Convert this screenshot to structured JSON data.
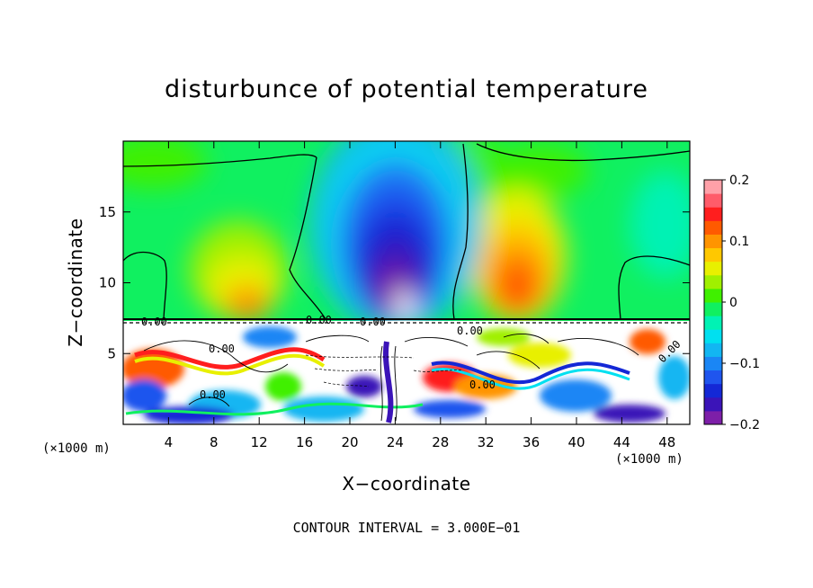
{
  "chart_data": {
    "type": "heatmap",
    "title": "disturbunce of potential temperature",
    "xlabel": "X−coordinate",
    "ylabel": "Z−coordinate",
    "x_unit": "(×1000 m)",
    "x_unit_right": "(×1000 m)",
    "xlim": [
      0,
      50
    ],
    "ylim": [
      0,
      20
    ],
    "xticks": [
      4,
      8,
      12,
      16,
      20,
      24,
      28,
      32,
      36,
      40,
      44,
      48
    ],
    "yticks": [
      5,
      10,
      15
    ],
    "colorbar": {
      "range": [
        -0.2,
        0.2
      ],
      "ticks": [
        0.2,
        0.1,
        0,
        -0.1,
        -0.2
      ],
      "tick_labels": [
        "0.2",
        "0.1",
        "0",
        "−0.1",
        "−0.2"
      ],
      "colors": [
        "#7d1fa8",
        "#3b14b8",
        "#1428d6",
        "#1f55ee",
        "#1a86f5",
        "#12b6f2",
        "#00e0f0",
        "#00f2b4",
        "#10f060",
        "#40f000",
        "#a0f000",
        "#e8f000",
        "#ffc800",
        "#ff9400",
        "#ff5a00",
        "#ff1e1e",
        "#ff5c6a",
        "#ffa0a8"
      ]
    },
    "contour_labels": [
      "0.00",
      "0.00",
      "0.00",
      "0.00",
      "0.00",
      "0.00",
      "0.00",
      "0.00"
    ],
    "contour_interval_text": "CONTOUR INTERVAL = 3.000E−01",
    "features": [
      {
        "x": 25,
        "z": 10,
        "value": -0.2
      },
      {
        "x": 25,
        "z": 15,
        "value": -0.14
      },
      {
        "x": 35,
        "z": 10,
        "value": 0.14
      },
      {
        "x": 34,
        "z": 15,
        "value": 0.08
      },
      {
        "x": 11,
        "z": 9,
        "value": 0.1
      },
      {
        "x": 46,
        "z": 10,
        "value": 0.0
      }
    ]
  }
}
